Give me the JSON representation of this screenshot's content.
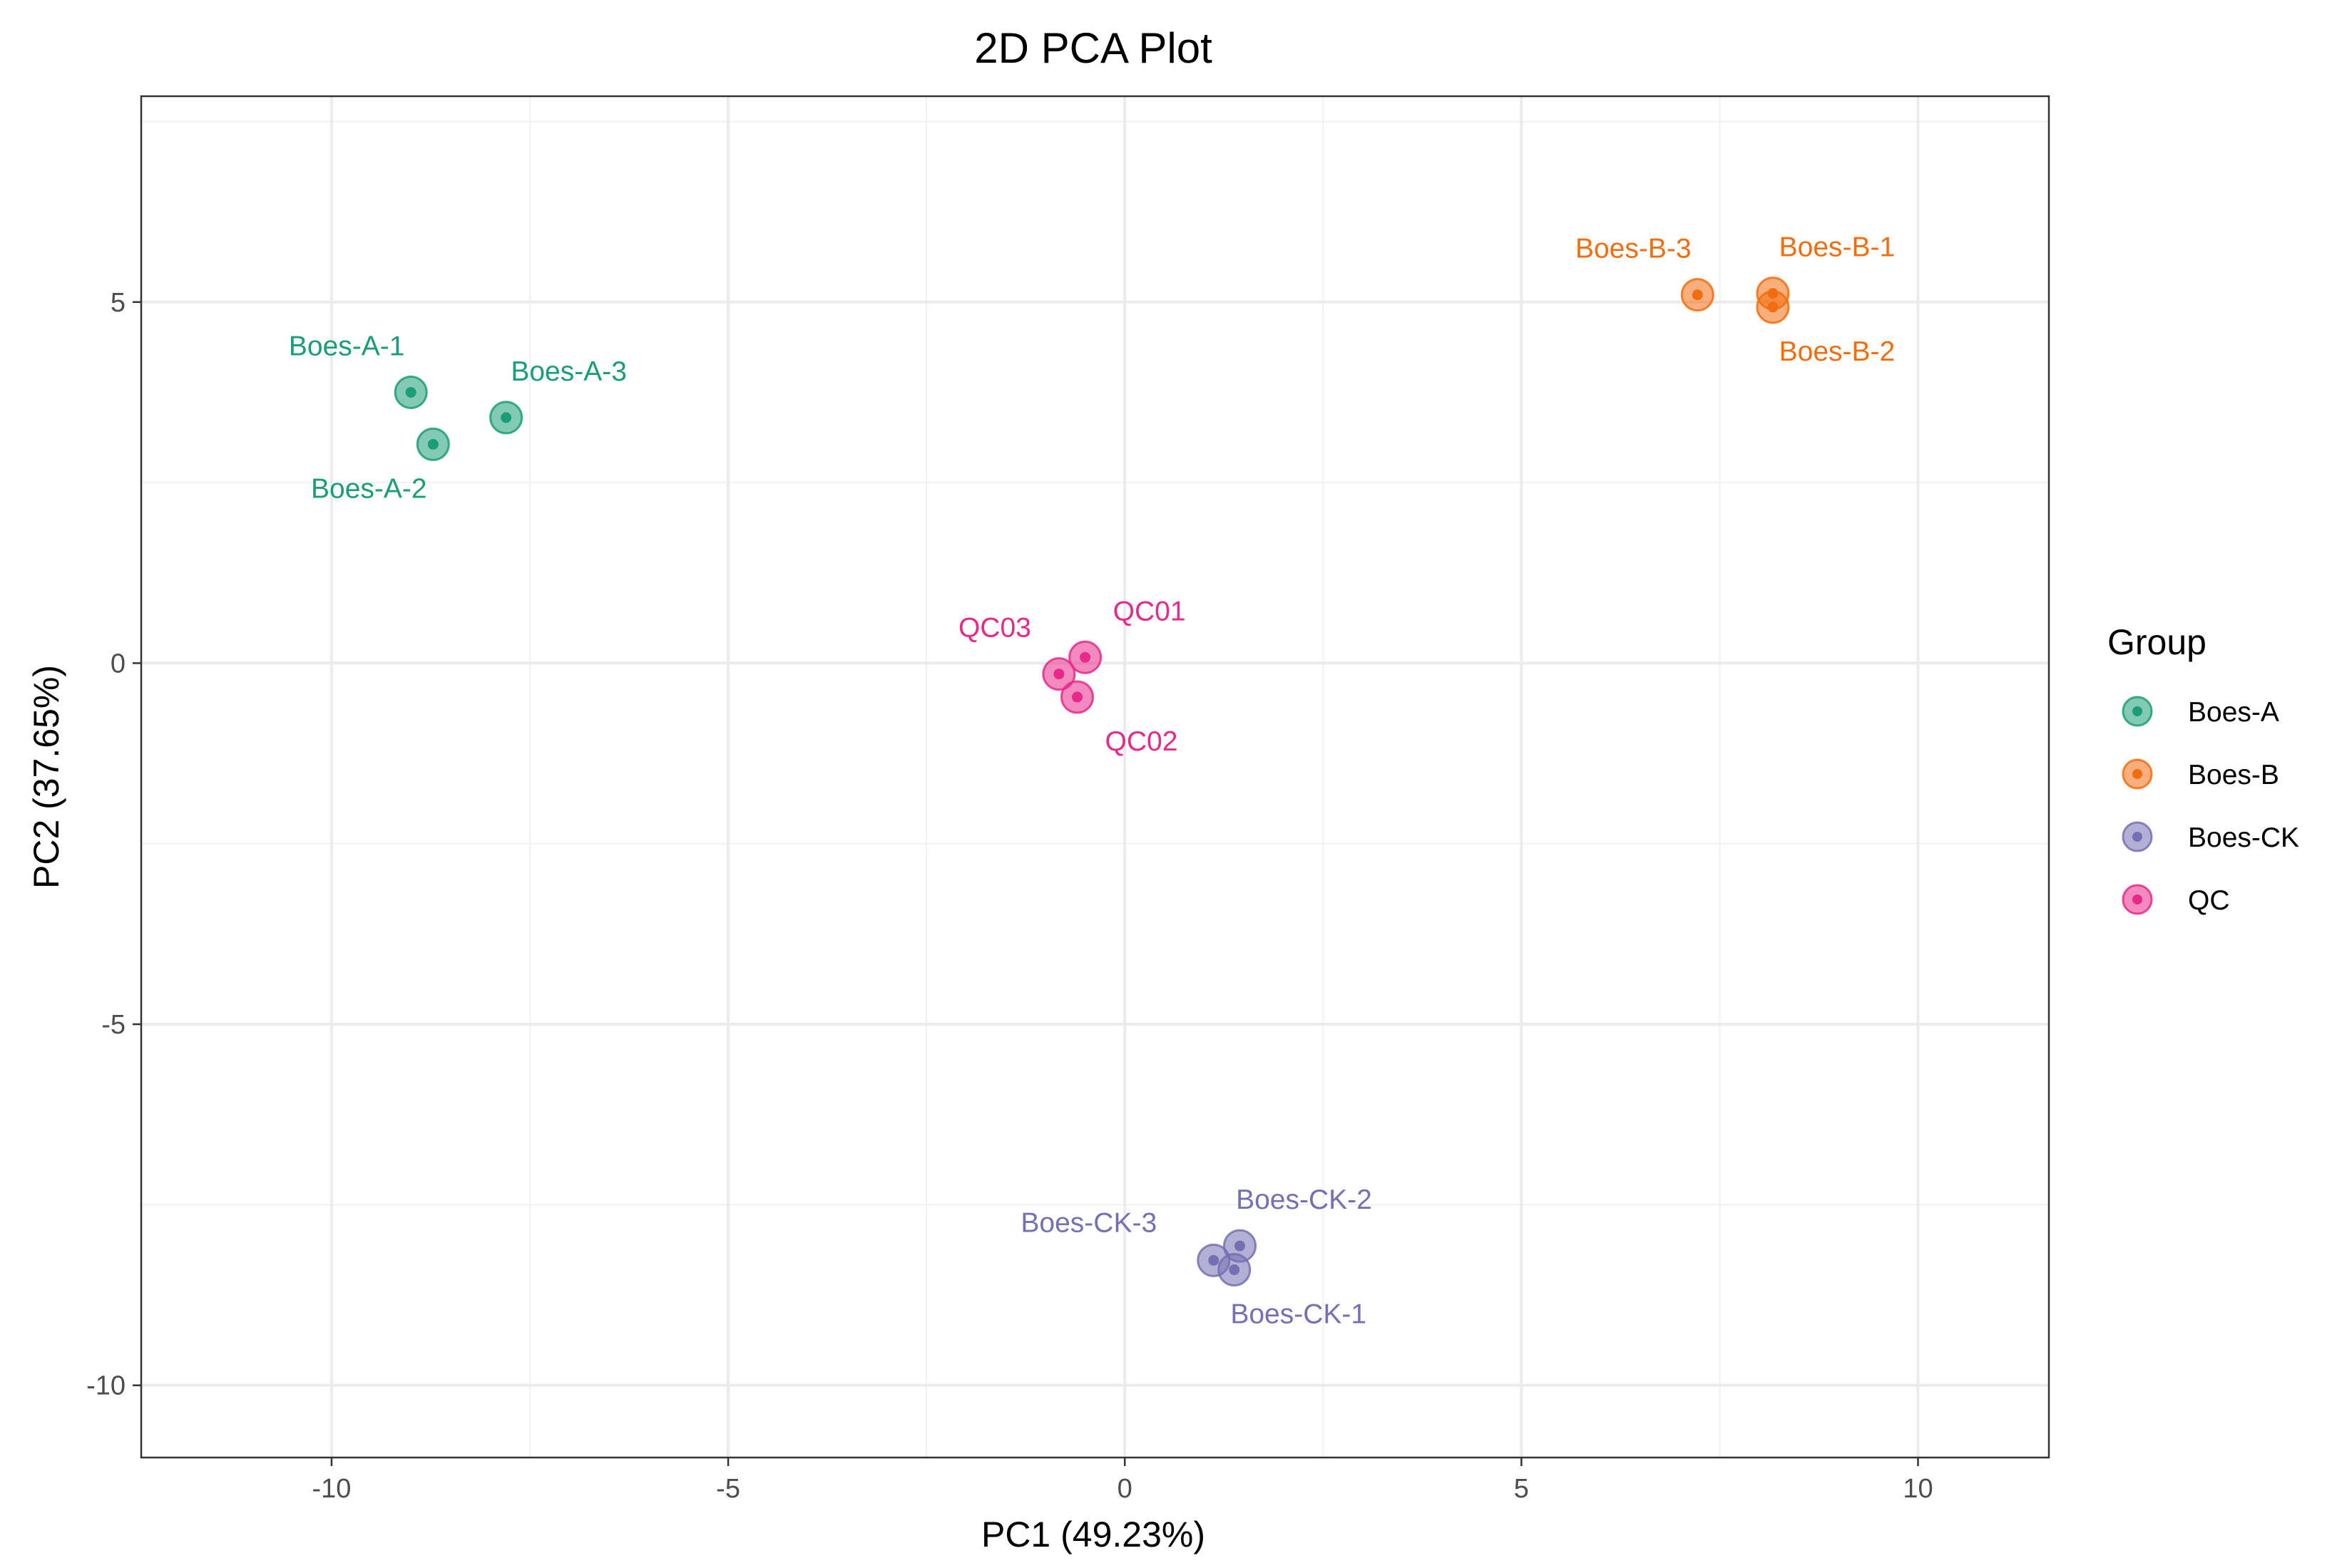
{
  "chart_data": {
    "type": "scatter",
    "title": "2D PCA Plot",
    "xlabel": "PC1 (49.23%)",
    "ylabel": "PC2 (37.65%)",
    "xlim": [
      -12.4,
      11.65
    ],
    "ylim": [
      -11.0,
      7.85
    ],
    "xticks": [
      -10,
      -5,
      0,
      5,
      10
    ],
    "xtick_labels": [
      "-10",
      "-5",
      "0",
      "5",
      "10"
    ],
    "yticks": [
      -10,
      -5,
      0,
      5
    ],
    "ytick_labels": [
      "-10",
      "-5",
      "0",
      "5"
    ],
    "grid": true,
    "legend": {
      "title": "Group",
      "position": "right"
    },
    "series": [
      {
        "name": "Boes-A",
        "color": "#1b9e77",
        "points": [
          {
            "label": "Boes-A-1",
            "x": -9.0,
            "y": 3.75
          },
          {
            "label": "Boes-A-2",
            "x": -8.72,
            "y": 3.03
          },
          {
            "label": "Boes-A-3",
            "x": -7.8,
            "y": 3.4
          }
        ]
      },
      {
        "name": "Boes-B",
        "color": "#f26d10",
        "points": [
          {
            "label": "Boes-B-1",
            "x": 8.17,
            "y": 5.12
          },
          {
            "label": "Boes-B-2",
            "x": 8.17,
            "y": 4.93
          },
          {
            "label": "Boes-B-3",
            "x": 7.22,
            "y": 5.1
          }
        ]
      },
      {
        "name": "Boes-CK",
        "color": "#7570b3",
        "points": [
          {
            "label": "Boes-CK-1",
            "x": 1.38,
            "y": -8.4
          },
          {
            "label": "Boes-CK-2",
            "x": 1.45,
            "y": -8.07
          },
          {
            "label": "Boes-CK-3",
            "x": 1.12,
            "y": -8.27
          }
        ]
      },
      {
        "name": "QC",
        "color": "#e7298a",
        "points": [
          {
            "label": "QC01",
            "x": -0.5,
            "y": 0.08
          },
          {
            "label": "QC02",
            "x": -0.6,
            "y": -0.47
          },
          {
            "label": "QC03",
            "x": -0.83,
            "y": -0.15
          }
        ]
      }
    ]
  }
}
